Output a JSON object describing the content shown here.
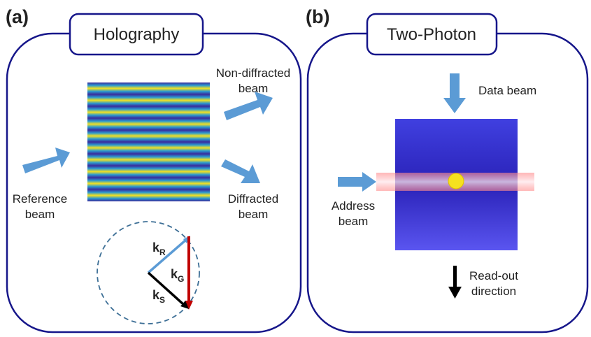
{
  "panels": [
    {
      "label": "(a)",
      "title": "Holography",
      "non_diffracted": [
        "Non-diffracted",
        "beam"
      ],
      "reference": [
        "Reference",
        "beam"
      ],
      "diffracted": [
        "Diffracted",
        "beam"
      ],
      "vectors": [
        {
          "k": "k",
          "sub": "R"
        },
        {
          "k": "k",
          "sub": "G"
        },
        {
          "k": "k",
          "sub": "S"
        }
      ]
    },
    {
      "label": "(b)",
      "title": "Two-Photon",
      "data_beam": "Data beam",
      "address": [
        "Address",
        "beam"
      ],
      "readout": [
        "Read-out",
        "direction"
      ]
    }
  ]
}
